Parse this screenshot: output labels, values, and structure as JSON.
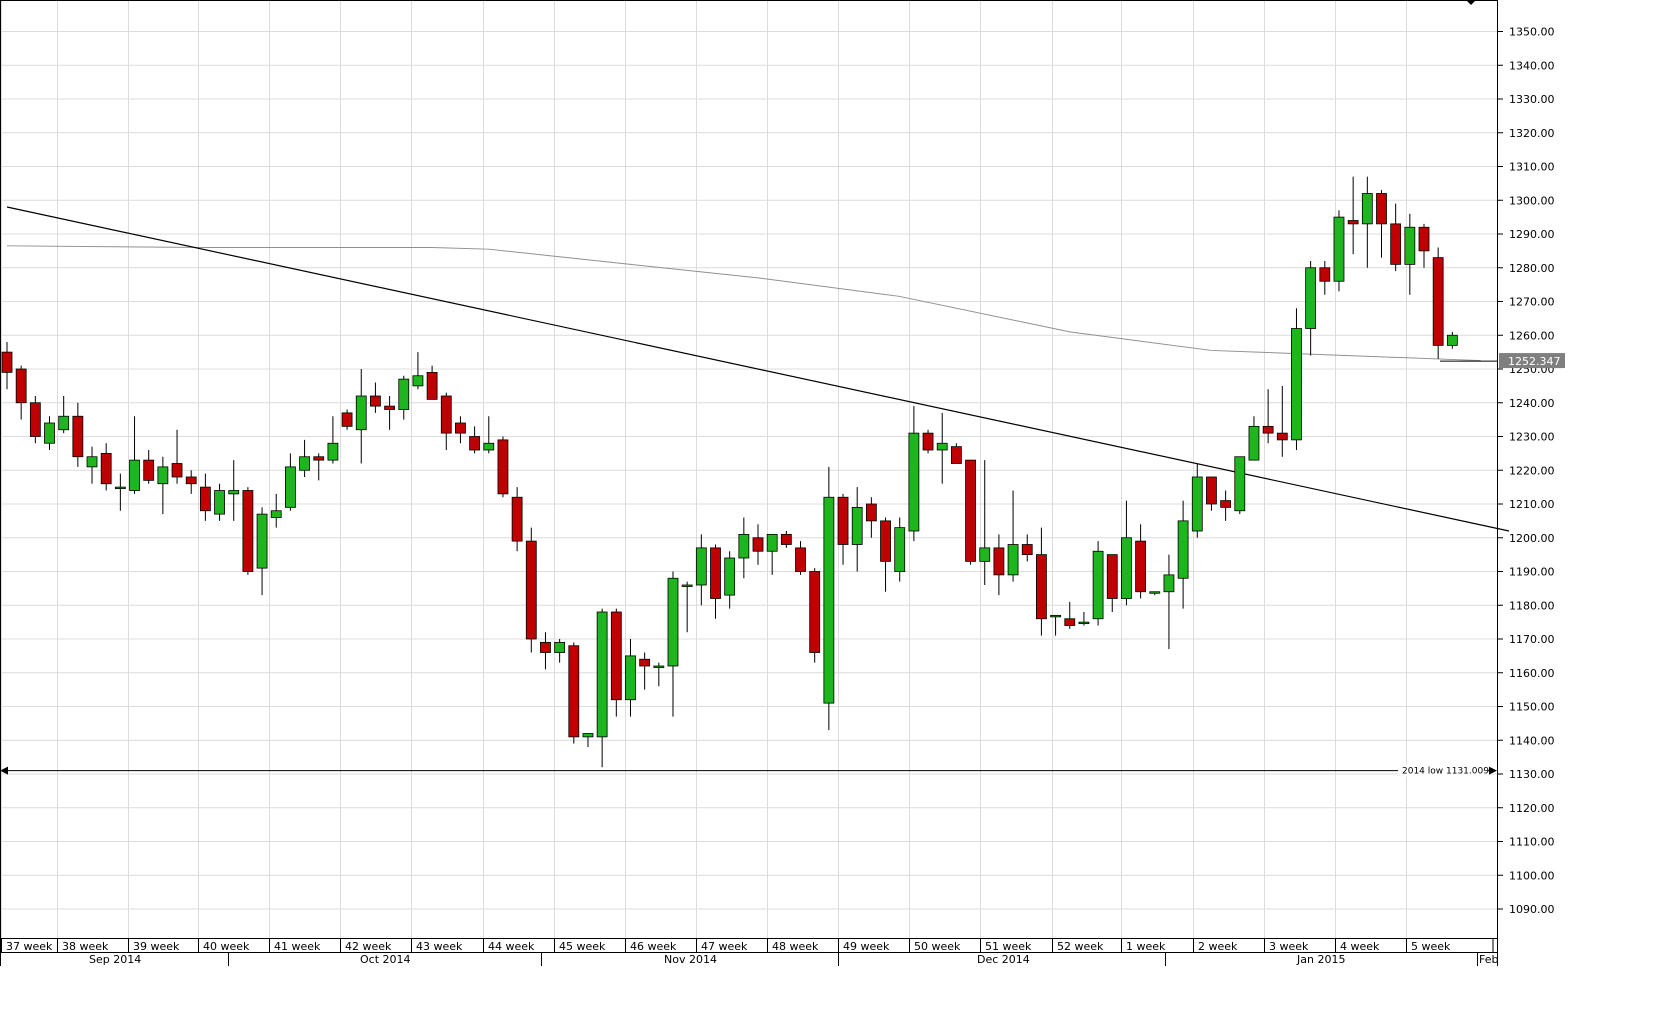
{
  "chart_data": {
    "type": "candlestick",
    "title": "",
    "xlabel": "",
    "ylabel": "",
    "ylim": [
      1080,
      1355
    ],
    "y_ticks": [
      "1090.00",
      "1100.00",
      "1110.00",
      "1120.00",
      "1130.00",
      "1140.00",
      "1150.00",
      "1160.00",
      "1170.00",
      "1180.00",
      "1190.00",
      "1200.00",
      "1210.00",
      "1220.00",
      "1230.00",
      "1240.00",
      "1250.00",
      "1260.00",
      "1270.00",
      "1280.00",
      "1290.00",
      "1300.00",
      "1310.00",
      "1320.00",
      "1330.00",
      "1340.00",
      "1350.00"
    ],
    "week_labels": [
      "37 week",
      "38 week",
      "39 week",
      "40 week",
      "41 week",
      "42 week",
      "43 week",
      "44 week",
      "45 week",
      "46 week",
      "47 week",
      "48 week",
      "49 week",
      "50 week",
      "51 week",
      "52 week",
      "1 week",
      "2 week",
      "3 week",
      "4 week",
      "5 week"
    ],
    "month_labels": [
      "Sep 2014",
      "Oct 2014",
      "Nov 2014",
      "Dec 2014",
      "Jan 2015",
      "Feb"
    ],
    "grid": true,
    "colors": {
      "up": "#1fb51f",
      "down": "#c00000",
      "wick": "#000000",
      "grid": "#dcdcdc",
      "moving_average": "#909090",
      "trendline": "#000000"
    },
    "candles": [
      [
        1255,
        1258,
        1244,
        1249
      ],
      [
        1250,
        1251,
        1235,
        1240
      ],
      [
        1240,
        1242,
        1228,
        1230
      ],
      [
        1228,
        1236,
        1226,
        1234
      ],
      [
        1232,
        1242,
        1231,
        1236
      ],
      [
        1236,
        1240,
        1221,
        1224
      ],
      [
        1221,
        1227,
        1216,
        1224
      ],
      [
        1225,
        1228,
        1214,
        1216
      ],
      [
        1215,
        1219,
        1208,
        1215
      ],
      [
        1214,
        1236,
        1213,
        1223
      ],
      [
        1223,
        1226,
        1216,
        1217
      ],
      [
        1216,
        1224,
        1207,
        1221
      ],
      [
        1222,
        1232,
        1216,
        1218
      ],
      [
        1218,
        1220,
        1213,
        1216
      ],
      [
        1215,
        1219,
        1205,
        1208
      ],
      [
        1207,
        1216,
        1205,
        1214
      ],
      [
        1213,
        1223,
        1205,
        1214
      ],
      [
        1214,
        1215,
        1189,
        1190
      ],
      [
        1191,
        1209,
        1183,
        1207
      ],
      [
        1206,
        1213,
        1203,
        1208
      ],
      [
        1209,
        1225,
        1208,
        1221
      ],
      [
        1220,
        1229,
        1218,
        1224
      ],
      [
        1224,
        1225,
        1217,
        1223
      ],
      [
        1223,
        1236,
        1222,
        1228
      ],
      [
        1237,
        1238,
        1232,
        1233
      ],
      [
        1232,
        1250,
        1222,
        1242
      ],
      [
        1242,
        1246,
        1237,
        1239
      ],
      [
        1239,
        1242,
        1232,
        1238
      ],
      [
        1238,
        1248,
        1235,
        1247
      ],
      [
        1245,
        1255,
        1244,
        1248
      ],
      [
        1249,
        1251,
        1241,
        1241
      ],
      [
        1242,
        1243,
        1226,
        1231
      ],
      [
        1234,
        1236,
        1228,
        1231
      ],
      [
        1230,
        1233,
        1225,
        1226
      ],
      [
        1226,
        1236,
        1225,
        1228
      ],
      [
        1229,
        1230,
        1212,
        1213
      ],
      [
        1212,
        1215,
        1196,
        1199
      ],
      [
        1199,
        1203,
        1166,
        1170
      ],
      [
        1169,
        1172,
        1161,
        1166
      ],
      [
        1166,
        1170,
        1163,
        1169
      ],
      [
        1168,
        1169,
        1139,
        1141
      ],
      [
        1141,
        1142,
        1138,
        1142
      ],
      [
        1141,
        1179,
        1132,
        1178
      ],
      [
        1178,
        1179,
        1147,
        1152
      ],
      [
        1152,
        1170,
        1147,
        1165
      ],
      [
        1164,
        1166,
        1155,
        1162
      ],
      [
        1162,
        1163,
        1156,
        1162
      ],
      [
        1162,
        1190,
        1147,
        1188
      ],
      [
        1186,
        1187,
        1172,
        1186
      ],
      [
        1186,
        1201,
        1180,
        1197
      ],
      [
        1197,
        1198,
        1176,
        1182
      ],
      [
        1183,
        1196,
        1179,
        1194
      ],
      [
        1194,
        1206,
        1188,
        1201
      ],
      [
        1200,
        1204,
        1192,
        1196
      ],
      [
        1196,
        1201,
        1189,
        1201
      ],
      [
        1201,
        1202,
        1197,
        1198
      ],
      [
        1197,
        1199,
        1189,
        1190
      ],
      [
        1190,
        1191,
        1163,
        1166
      ],
      [
        1151,
        1221,
        1143,
        1212
      ],
      [
        1212,
        1213,
        1192,
        1198
      ],
      [
        1198,
        1215,
        1190,
        1209
      ],
      [
        1210,
        1212,
        1200,
        1205
      ],
      [
        1205,
        1206,
        1184,
        1193
      ],
      [
        1190,
        1206,
        1187,
        1203
      ],
      [
        1202,
        1239,
        1199,
        1231
      ],
      [
        1231,
        1232,
        1225,
        1226
      ],
      [
        1226,
        1237,
        1216,
        1228
      ],
      [
        1227,
        1228,
        1222,
        1222
      ],
      [
        1223,
        1223,
        1192,
        1193
      ],
      [
        1193,
        1223,
        1186,
        1197
      ],
      [
        1197,
        1201,
        1183,
        1189
      ],
      [
        1189,
        1214,
        1187,
        1198
      ],
      [
        1198,
        1201,
        1193,
        1195
      ],
      [
        1195,
        1203,
        1171,
        1176
      ],
      [
        1177,
        1177,
        1171,
        1177
      ],
      [
        1176,
        1181,
        1173,
        1174
      ],
      [
        1175,
        1178,
        1174,
        1175
      ],
      [
        1176,
        1199,
        1174,
        1196
      ],
      [
        1195,
        1195,
        1178,
        1182
      ],
      [
        1182,
        1211,
        1180,
        1200
      ],
      [
        1199,
        1204,
        1182,
        1184
      ],
      [
        1184,
        1184,
        1183,
        1184
      ],
      [
        1184,
        1195,
        1167,
        1189
      ],
      [
        1188,
        1211,
        1179,
        1205
      ],
      [
        1202,
        1222,
        1200,
        1218
      ],
      [
        1218,
        1218,
        1208,
        1210
      ],
      [
        1211,
        1214,
        1205,
        1209
      ],
      [
        1208,
        1224,
        1207,
        1224
      ],
      [
        1223,
        1236,
        1223,
        1233
      ],
      [
        1233,
        1244,
        1228,
        1231
      ],
      [
        1231,
        1245,
        1224,
        1229
      ],
      [
        1229,
        1268,
        1226,
        1262
      ],
      [
        1262,
        1282,
        1254,
        1280
      ],
      [
        1280,
        1282,
        1272,
        1276
      ],
      [
        1276,
        1297,
        1273,
        1295
      ],
      [
        1294,
        1307,
        1284,
        1293
      ],
      [
        1293,
        1307,
        1280,
        1302
      ],
      [
        1302,
        1303,
        1283,
        1293
      ],
      [
        1293,
        1299,
        1279,
        1281
      ],
      [
        1281,
        1296,
        1272,
        1292
      ],
      [
        1292,
        1293,
        1280,
        1285
      ],
      [
        1283,
        1286,
        1253,
        1257
      ],
      [
        1257,
        1261,
        1256,
        1260
      ]
    ],
    "moving_average": [
      [
        0,
        1286.5
      ],
      [
        14,
        1286
      ],
      [
        30,
        1286
      ],
      [
        34,
        1285.5
      ],
      [
        44,
        1281
      ],
      [
        53,
        1277
      ],
      [
        63,
        1271.5
      ],
      [
        75,
        1261
      ],
      [
        85,
        1255.5
      ],
      [
        104,
        1252.5
      ]
    ],
    "trendline": [
      [
        0,
        1298
      ],
      [
        106,
        1202
      ]
    ],
    "support_line": {
      "value": 1131.009,
      "label": "2014 low",
      "value_label": "1131.009"
    },
    "last_price": {
      "value": 1252.347,
      "label": "1252.347"
    }
  }
}
